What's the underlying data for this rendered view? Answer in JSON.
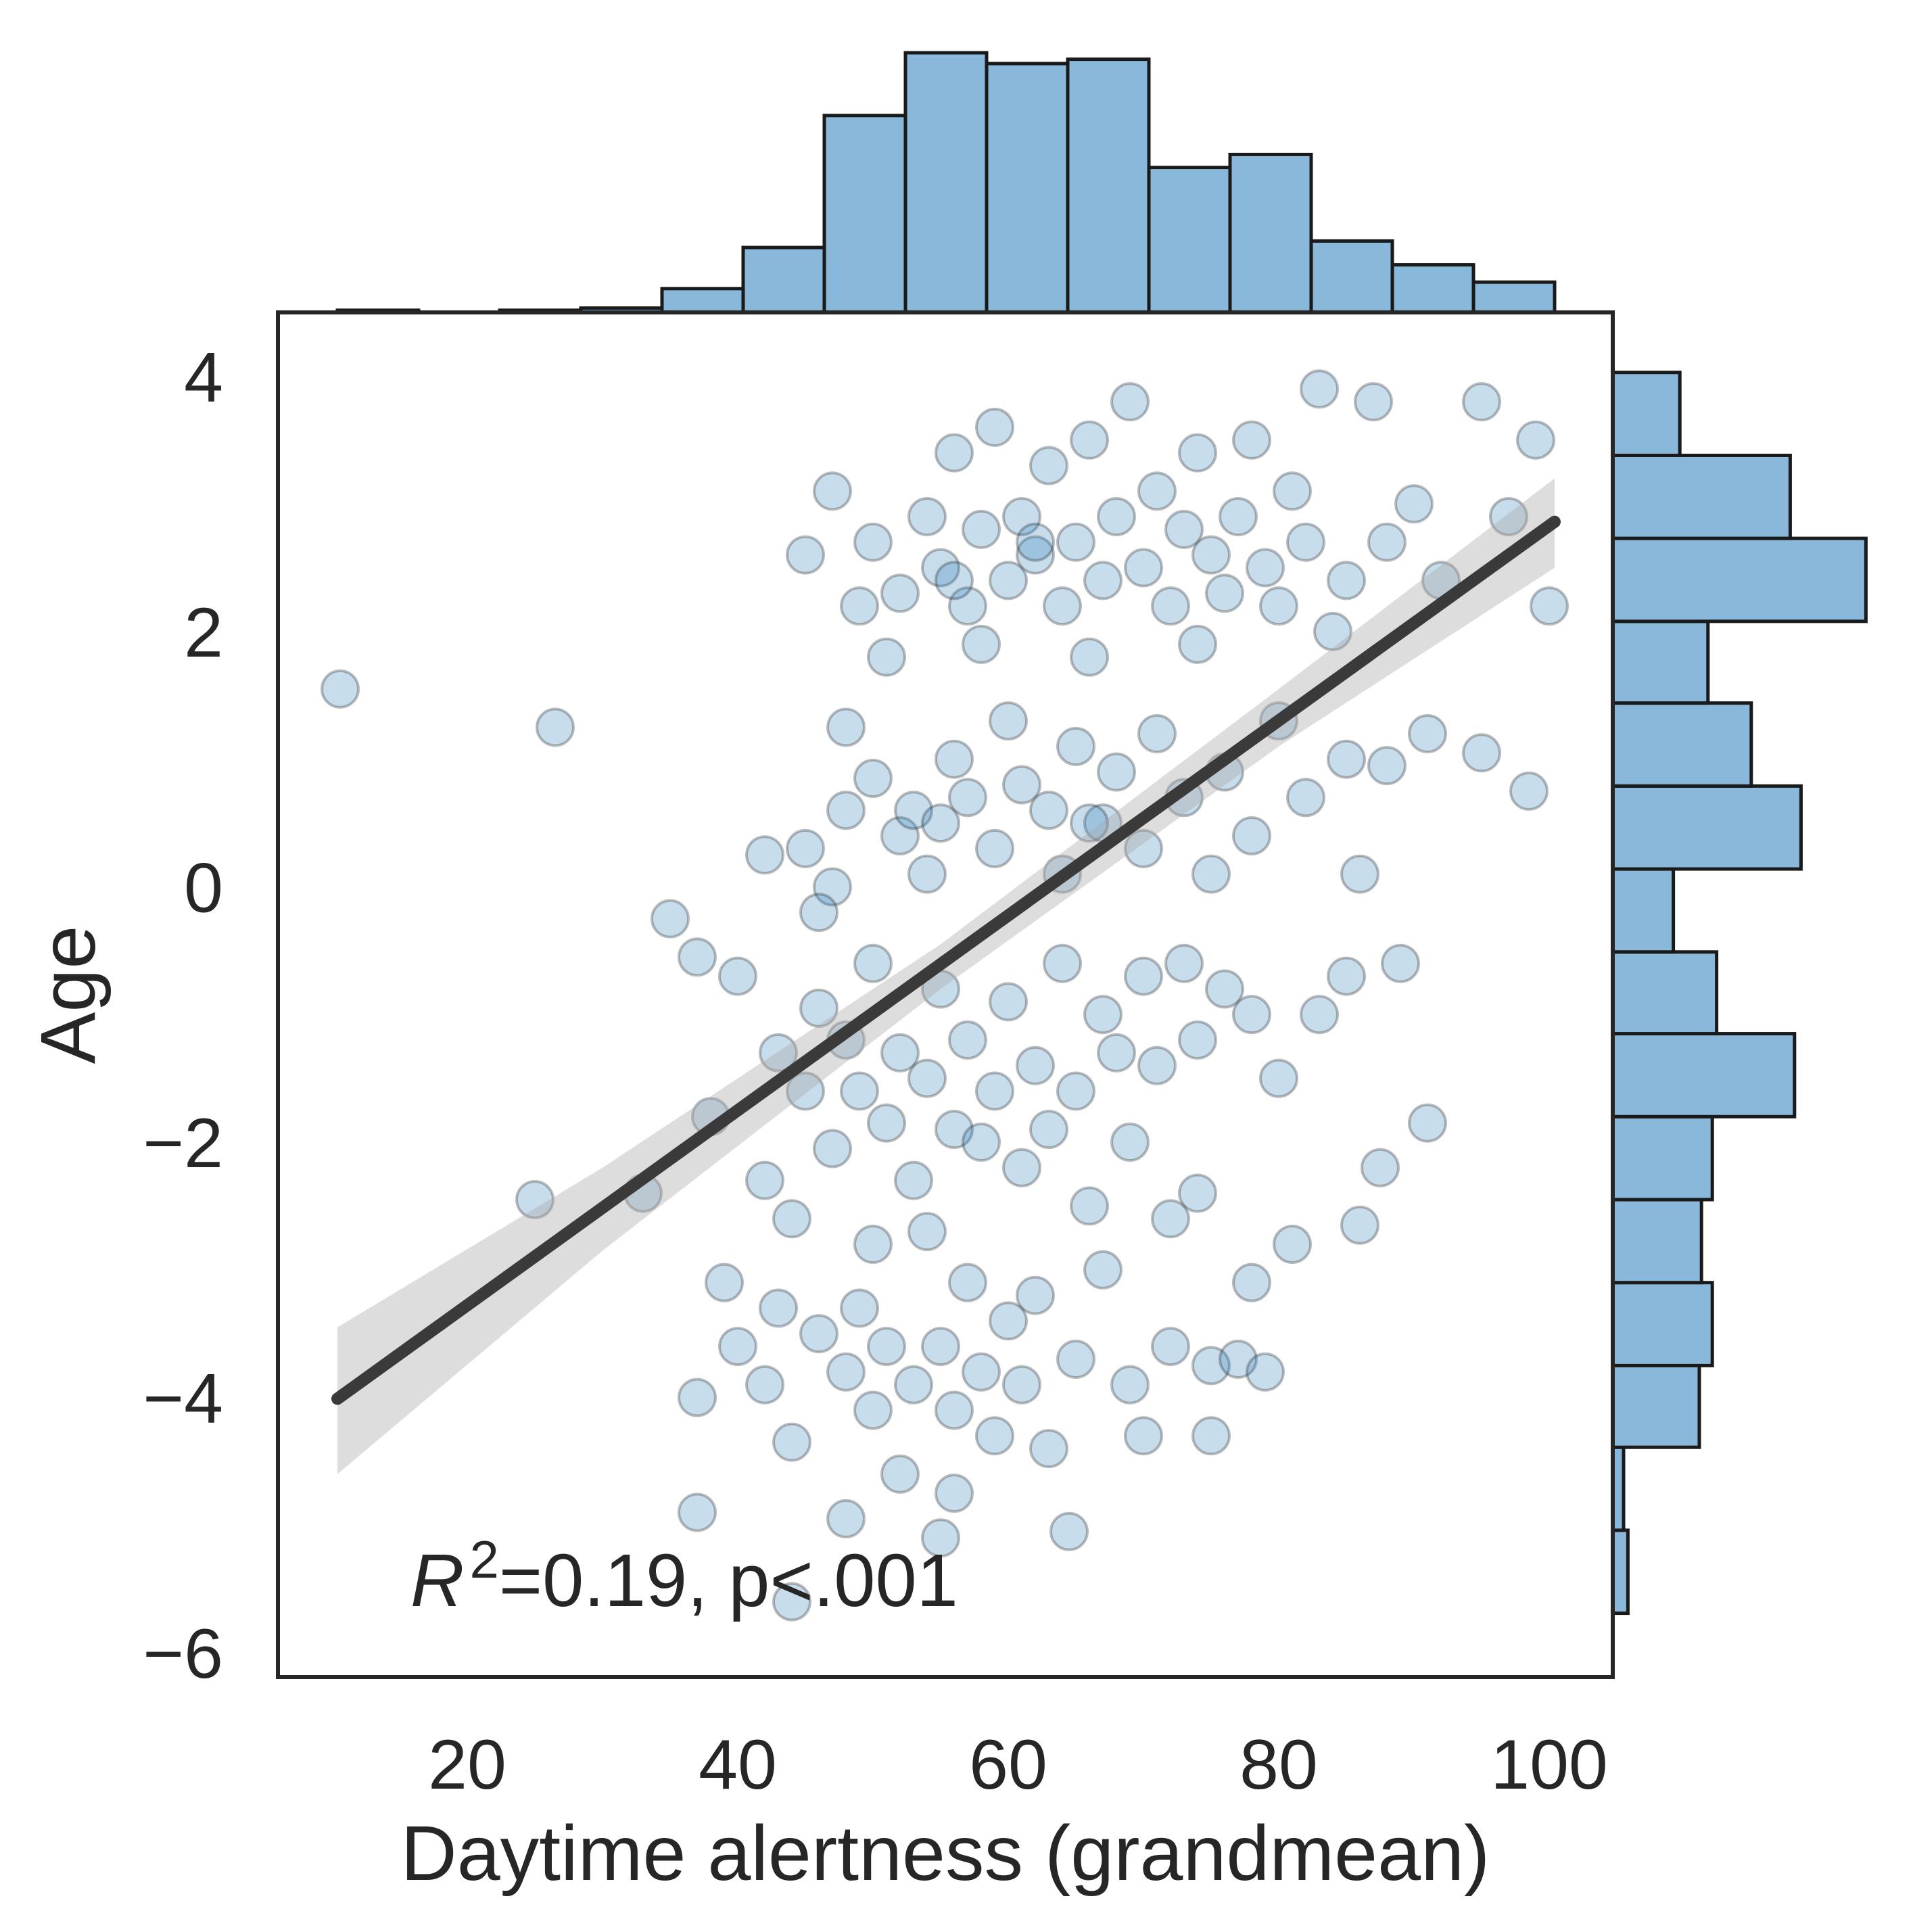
{
  "chart_data": {
    "type": "scatter",
    "x_label": "Daytime alertness (grandmean)",
    "y_label": "Age",
    "annotation": [
      "R",
      "2",
      "=0.19, p<.001"
    ],
    "xlim": [
      6.0,
      104.7
    ],
    "ylim": [
      -6.19,
      4.5
    ],
    "xticks": [
      20,
      40,
      60,
      80,
      100
    ],
    "yticks": [
      {
        "value": -6,
        "label": "−6"
      },
      {
        "value": -4,
        "label": "−4"
      },
      {
        "value": -2,
        "label": "−2"
      },
      0,
      2,
      4
    ],
    "color": "#1f77b4",
    "hist_color": "#8ab8da",
    "series": [
      {
        "x": [
          47,
          50,
          52,
          54,
          55,
          56,
          57,
          58,
          59,
          60,
          61,
          62,
          63,
          64,
          65,
          66,
          67,
          68,
          69,
          70,
          71,
          72,
          73,
          74,
          75,
          76,
          77,
          78,
          79,
          80,
          81,
          82,
          83,
          85,
          87,
          88,
          90,
          92,
          95,
          97,
          62,
          56,
          45,
          49,
          51,
          58,
          66,
          74,
          84,
          100,
          99,
          42,
          45,
          47,
          48,
          50,
          52,
          53,
          55,
          56,
          57,
          59,
          60,
          61,
          63,
          64,
          65,
          67,
          68,
          70,
          71,
          73,
          75,
          76,
          78,
          80,
          82,
          85,
          88,
          91,
          95,
          98.5,
          86,
          48,
          54,
          66,
          35,
          37,
          40,
          43,
          45,
          46,
          47,
          48,
          49,
          50,
          51,
          52,
          53,
          54,
          55,
          56,
          57,
          58,
          59,
          60,
          61,
          62,
          63,
          64,
          65,
          66,
          67,
          68,
          69,
          70,
          71,
          73,
          74,
          76,
          78,
          80,
          83,
          85,
          89,
          72,
          44,
          42,
          38,
          74,
          46,
          39,
          40,
          42,
          43,
          44,
          46,
          48,
          49,
          50,
          51,
          52,
          53,
          55,
          56,
          57,
          58,
          59,
          60,
          61,
          62,
          63,
          65,
          67,
          69,
          70,
          72,
          75,
          77,
          78,
          79,
          81,
          37,
          54,
          50,
          10.6,
          26.5,
          25,
          33,
          64.5,
          44,
          37,
          91,
          87.5,
          86,
          56,
          48,
          55,
          75
        ],
        "y": [
          3.1,
          2.7,
          2.3,
          2.9,
          2.5,
          3.4,
          2.2,
          2.8,
          3.6,
          2.4,
          2.9,
          2.6,
          3.3,
          2.2,
          2.7,
          3.5,
          2.4,
          2.9,
          3.8,
          2.5,
          3.1,
          2.2,
          2.8,
          3.4,
          2.6,
          2.3,
          2.9,
          3.5,
          2.5,
          2.2,
          3.1,
          2.7,
          3.9,
          2.4,
          3.8,
          2.7,
          3.0,
          2.4,
          3.8,
          2.9,
          2.7,
          2.4,
          2.6,
          2.2,
          1.8,
          1.9,
          1.8,
          1.9,
          2.0,
          2.2,
          3.5,
          0.25,
          0.3,
          0.0,
          0.6,
          0.85,
          0.4,
          0.6,
          0.5,
          1.0,
          0.7,
          0.3,
          1.3,
          0.8,
          0.6,
          0.1,
          1.1,
          0.5,
          0.9,
          0.3,
          1.2,
          0.7,
          0.1,
          0.9,
          0.4,
          1.3,
          0.7,
          1.0,
          0.95,
          1.2,
          1.05,
          0.75,
          0.1,
          1.25,
          0.1,
          0.5,
          -0.25,
          -0.55,
          -0.7,
          -1.3,
          -1.6,
          -0.95,
          -2.05,
          -1.2,
          -1.6,
          -0.6,
          -1.85,
          -1.3,
          -2.3,
          -1.5,
          -0.8,
          -1.9,
          -1.2,
          -2.0,
          -1.6,
          -0.9,
          -2.2,
          -1.4,
          -1.9,
          -0.6,
          -1.6,
          -2.5,
          -1.0,
          -1.3,
          -2.0,
          -0.7,
          -1.4,
          -0.6,
          -1.2,
          -0.8,
          -1.0,
          -1.5,
          -1.0,
          -0.7,
          -0.6,
          -2.6,
          -2.6,
          -2.3,
          -1.8,
          -2.4,
          -0.2,
          -3.1,
          -3.6,
          -3.9,
          -3.3,
          -4.35,
          -3.5,
          -3.8,
          -3.3,
          -4.1,
          -3.6,
          -4.6,
          -3.9,
          -3.6,
          -4.1,
          -3.1,
          -3.8,
          -4.3,
          -3.4,
          -3.9,
          -3.2,
          -4.4,
          -3.7,
          -3.0,
          -3.9,
          -4.3,
          -3.6,
          -3.75,
          -3.7,
          -3.1,
          -3.8,
          -2.8,
          -4.0,
          -2.7,
          -2.8,
          1.55,
          1.25,
          -2.45,
          -2.4,
          -5.05,
          -5.6,
          -4.9,
          -1.85,
          -2.2,
          -2.65,
          -4.75,
          -4.95,
          -5.1,
          -4.3
        ]
      }
    ],
    "regression": {
      "x": [
        10.4,
        100.4
      ],
      "y": [
        -4.01,
        2.86
      ],
      "color": "#3a3a3a"
    },
    "confidence_band": {
      "x": [
        10.4,
        30,
        55,
        80,
        100.4
      ],
      "upper": [
        -3.45,
        -2.2,
        -0.45,
        1.55,
        3.2
      ],
      "lower": [
        -4.6,
        -2.85,
        -0.8,
        1.1,
        2.5
      ]
    },
    "top_histogram": {
      "bins": [
        10.4,
        16.4,
        22.4,
        28.4,
        34.4,
        40.4,
        46.4,
        52.4,
        58.4,
        64.4,
        70.4,
        76.4,
        82.4,
        88.4,
        94.4,
        100.4
      ],
      "counts": [
        1,
        0,
        1,
        2,
        11,
        30,
        91,
        120,
        115,
        117,
        67,
        73,
        33,
        22,
        14
      ]
    },
    "right_histogram": {
      "bins": [
        -5.69,
        -5.04,
        -4.39,
        -3.75,
        -3.1,
        -2.45,
        -1.8,
        -1.15,
        -0.51,
        0.14,
        0.79,
        1.44,
        2.08,
        2.73,
        3.38,
        4.03
      ],
      "counts": [
        7,
        5,
        40,
        46,
        41,
        46,
        84,
        48,
        28,
        87,
        64,
        44,
        117,
        82,
        31
      ]
    }
  }
}
